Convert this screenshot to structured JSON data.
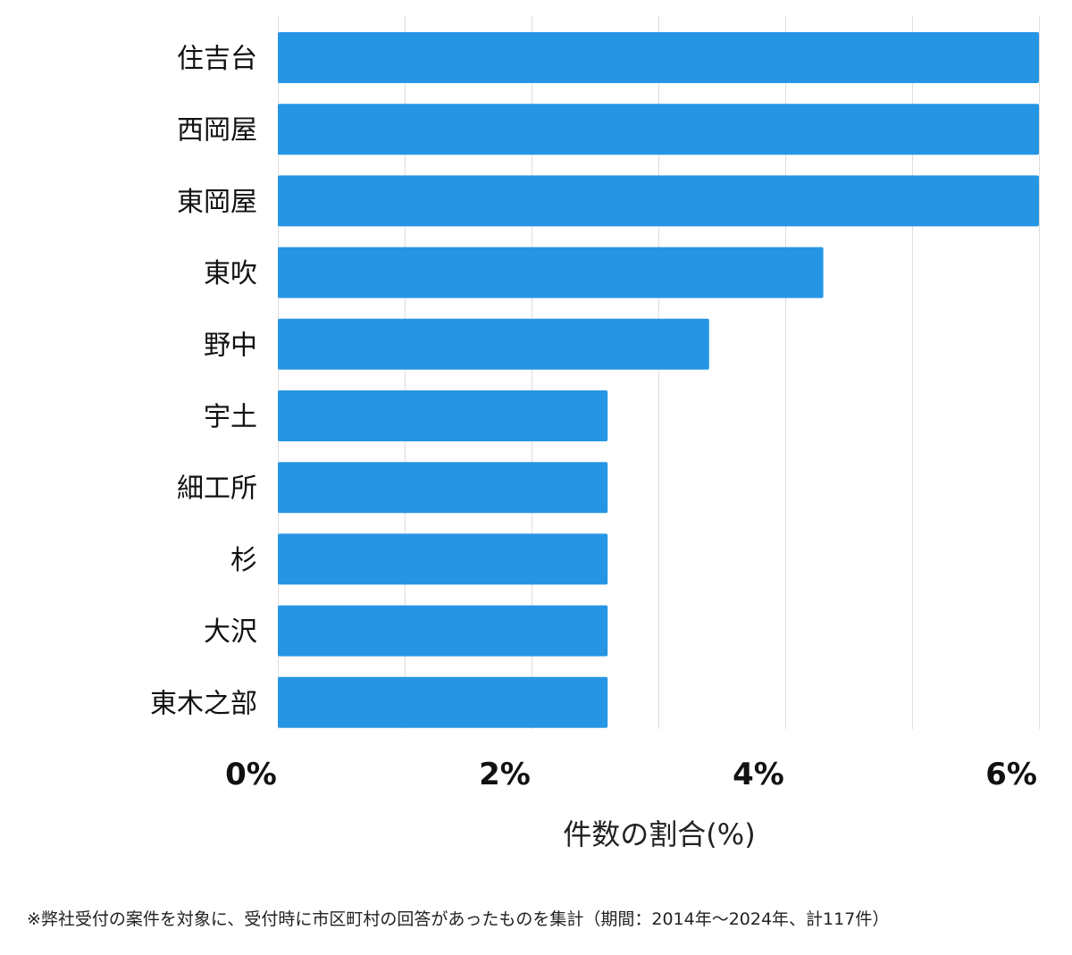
{
  "chart_data": {
    "type": "bar",
    "orientation": "horizontal",
    "categories": [
      "住吉台",
      "西岡屋",
      "東岡屋",
      "東吹",
      "野中",
      "宇土",
      "細工所",
      "杉",
      "大沢",
      "東木之部"
    ],
    "values": [
      6.0,
      6.0,
      6.0,
      4.3,
      3.4,
      2.6,
      2.6,
      2.6,
      2.6,
      2.6
    ],
    "xlim": [
      0,
      6
    ],
    "xticks": [
      0,
      2,
      4,
      6
    ],
    "xtick_labels": [
      "0%",
      "2%",
      "4%",
      "6%"
    ],
    "xlabel": "件数の割合(%)",
    "title": "",
    "grid": true,
    "bar_color": "#2695e4",
    "grid_color": "#dddddd"
  },
  "footnote": "※弊社受付の案件を対象に、受付時に市区町村の回答があったものを集計（期間：2014年～2024年、計117件）"
}
